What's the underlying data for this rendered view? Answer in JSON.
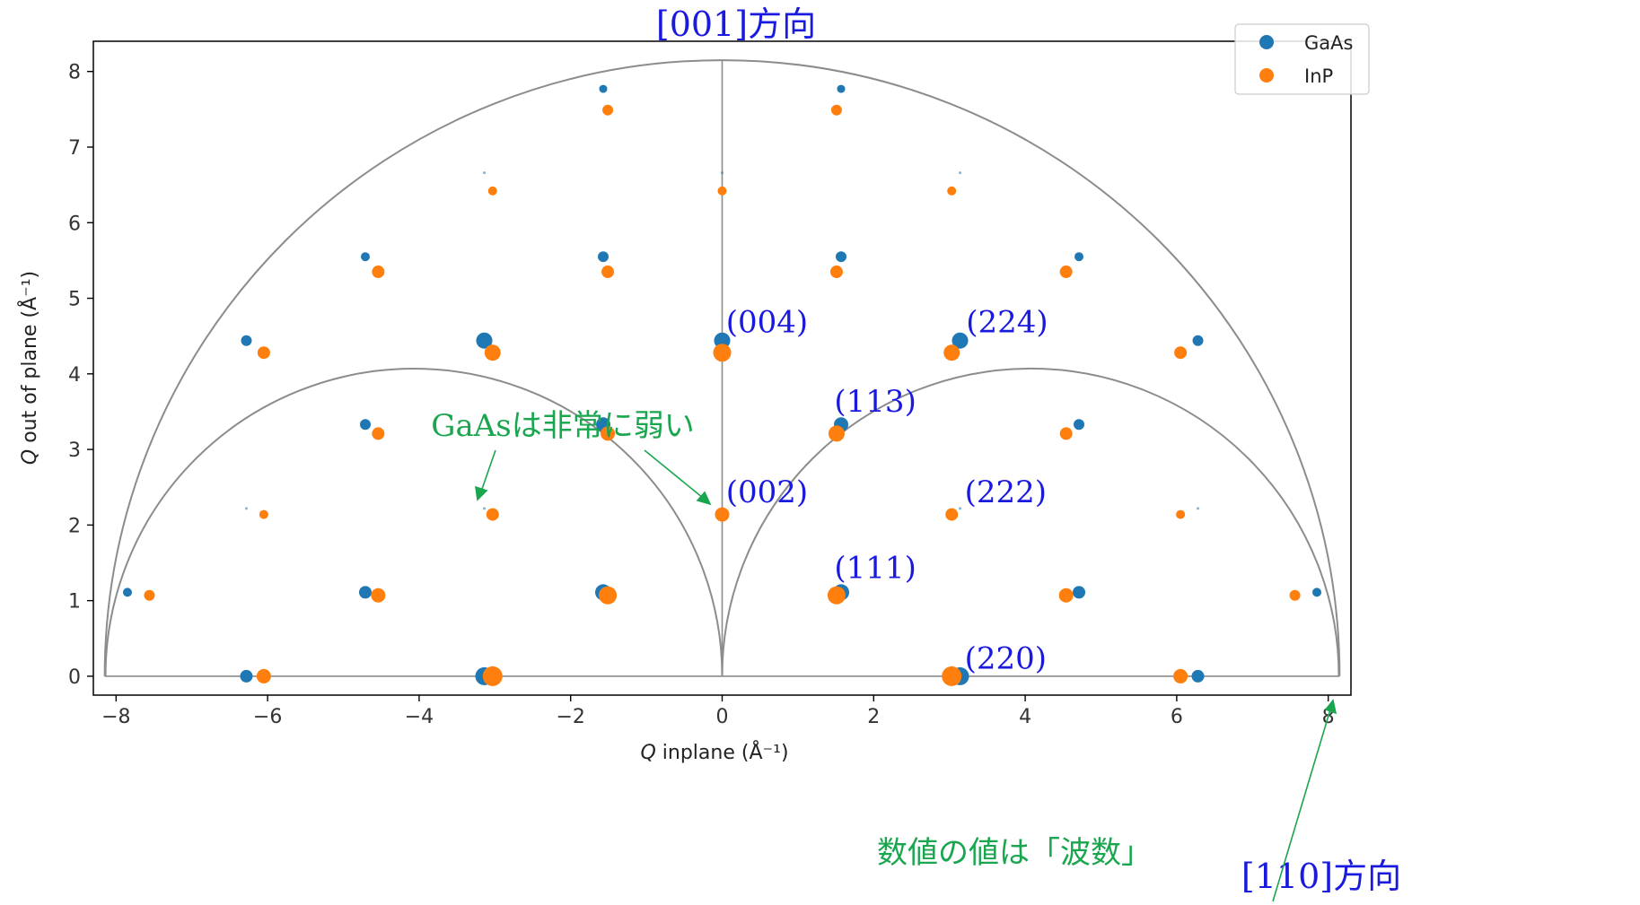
{
  "chart_data": {
    "type": "scatter",
    "xlabel_q": "Q",
    "xlabel_rest": " inplane (Å⁻¹)",
    "ylabel_q": "Q",
    "ylabel_rest": " out of plane (Å⁻¹)",
    "xlim": [
      -8.3,
      8.3
    ],
    "ylim": [
      -0.25,
      8.4
    ],
    "xticks": [
      -8,
      -6,
      -4,
      -2,
      0,
      2,
      4,
      6,
      8
    ],
    "yticks": [
      0,
      1,
      2,
      3,
      4,
      5,
      6,
      7,
      8
    ],
    "grid": false,
    "legend_position": "top-right",
    "colors": {
      "GaAs": "#1f77b4",
      "InP": "#ff7f0e",
      "guides": "#8c8c8c",
      "annotation": "#1a1adf",
      "note": "#1aa64f"
    },
    "series": [
      {
        "name": "GaAs",
        "points": [
          [
            -6.28,
            0,
            7
          ],
          [
            -3.14,
            0,
            10
          ],
          [
            3.14,
            0,
            10
          ],
          [
            6.28,
            0,
            7
          ],
          [
            -7.85,
            1.11,
            5
          ],
          [
            -4.71,
            1.11,
            7
          ],
          [
            -1.57,
            1.11,
            9
          ],
          [
            1.57,
            1.11,
            9
          ],
          [
            4.71,
            1.11,
            7
          ],
          [
            7.85,
            1.11,
            5
          ],
          [
            -6.28,
            2.22,
            1.5
          ],
          [
            -3.14,
            2.22,
            1.5
          ],
          [
            3.14,
            2.22,
            1.5
          ],
          [
            6.28,
            2.22,
            1.5
          ],
          [
            -4.71,
            3.33,
            6
          ],
          [
            -1.57,
            3.33,
            8
          ],
          [
            1.57,
            3.33,
            8
          ],
          [
            4.71,
            3.33,
            6
          ],
          [
            -6.28,
            4.44,
            6
          ],
          [
            -3.14,
            4.44,
            9
          ],
          [
            0,
            4.44,
            9
          ],
          [
            3.14,
            4.44,
            9
          ],
          [
            6.28,
            4.44,
            6
          ],
          [
            -4.71,
            5.55,
            5
          ],
          [
            -1.57,
            5.55,
            6
          ],
          [
            1.57,
            5.55,
            6
          ],
          [
            4.71,
            5.55,
            5
          ],
          [
            -3.14,
            6.66,
            1.5
          ],
          [
            0,
            6.66,
            1.5
          ],
          [
            3.14,
            6.66,
            1.5
          ],
          [
            -1.57,
            7.77,
            4.5
          ],
          [
            1.57,
            7.77,
            4.5
          ]
        ]
      },
      {
        "name": "InP",
        "points": [
          [
            -6.05,
            0,
            8
          ],
          [
            -3.03,
            0,
            11
          ],
          [
            3.03,
            0,
            11
          ],
          [
            6.05,
            0,
            8
          ],
          [
            -7.56,
            1.07,
            6
          ],
          [
            -4.54,
            1.07,
            8
          ],
          [
            -1.51,
            1.07,
            10
          ],
          [
            1.51,
            1.07,
            10
          ],
          [
            4.54,
            1.07,
            8
          ],
          [
            7.56,
            1.07,
            6
          ],
          [
            -6.05,
            2.14,
            5
          ],
          [
            -3.03,
            2.14,
            7
          ],
          [
            0,
            2.14,
            8
          ],
          [
            3.03,
            2.14,
            7
          ],
          [
            6.05,
            2.14,
            5
          ],
          [
            -4.54,
            3.21,
            7
          ],
          [
            -1.51,
            3.21,
            8
          ],
          [
            1.51,
            3.21,
            9
          ],
          [
            4.54,
            3.21,
            7
          ],
          [
            -6.05,
            4.28,
            7
          ],
          [
            -3.03,
            4.28,
            9
          ],
          [
            0,
            4.28,
            10
          ],
          [
            3.03,
            4.28,
            9
          ],
          [
            6.05,
            4.28,
            7
          ],
          [
            -4.54,
            5.35,
            7
          ],
          [
            -1.51,
            5.35,
            7
          ],
          [
            1.51,
            5.35,
            7
          ],
          [
            4.54,
            5.35,
            7
          ],
          [
            -3.03,
            6.42,
            5
          ],
          [
            0,
            6.42,
            5
          ],
          [
            3.03,
            6.42,
            5
          ],
          [
            -1.51,
            7.49,
            6
          ],
          [
            1.51,
            7.49,
            6
          ]
        ]
      }
    ],
    "guide_circles": [
      {
        "center": [
          0,
          0
        ],
        "radius": 8.15
      },
      {
        "center": [
          -4.07,
          0
        ],
        "radius": 4.07
      },
      {
        "center": [
          4.07,
          0
        ],
        "radius": 4.07
      }
    ],
    "guide_lines": [
      {
        "from": [
          -8.15,
          0
        ],
        "to": [
          8.15,
          0
        ]
      },
      {
        "from": [
          0,
          0
        ],
        "to": [
          0,
          8.15
        ]
      }
    ],
    "reflection_labels": [
      {
        "text": "(004)",
        "x": 0.05,
        "y": 4.55
      },
      {
        "text": "(224)",
        "x": 3.22,
        "y": 4.55
      },
      {
        "text": "(113)",
        "x": 1.48,
        "y": 3.5
      },
      {
        "text": "(002)",
        "x": 0.05,
        "y": 2.3
      },
      {
        "text": "(222)",
        "x": 3.2,
        "y": 2.3
      },
      {
        "text": "(111)",
        "x": 1.48,
        "y": 1.3
      },
      {
        "text": "(220)",
        "x": 3.2,
        "y": 0.1
      }
    ],
    "direction_labels": {
      "up": "[001]方向",
      "right": "[110]方向"
    },
    "notes": {
      "weak": "GaAsは非常に弱い",
      "units": "数値の値は「波数」"
    }
  }
}
